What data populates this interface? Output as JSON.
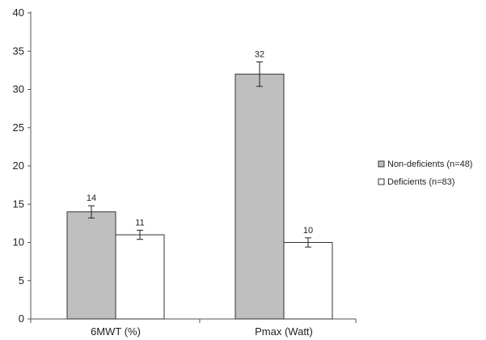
{
  "chart_data": {
    "type": "bar",
    "categories": [
      "6MWT (%)",
      "Pmax (Watt)"
    ],
    "series": [
      {
        "name": "Non-deficients (n=48)",
        "values": [
          14,
          32
        ],
        "errors": [
          0.8,
          1.6
        ],
        "color": "#bfbfbf"
      },
      {
        "name": "Deficients (n=83)",
        "values": [
          11,
          10
        ],
        "errors": [
          0.6,
          0.6
        ],
        "color": "#ffffff"
      }
    ],
    "data_labels": [
      [
        "14",
        "32"
      ],
      [
        "11",
        "10"
      ]
    ],
    "ylim": [
      0,
      40
    ],
    "yticks": [
      0,
      5,
      10,
      15,
      20,
      25,
      30,
      35,
      40
    ],
    "grid": false,
    "legend": "right",
    "title": "",
    "xlabel": "",
    "ylabel": ""
  }
}
